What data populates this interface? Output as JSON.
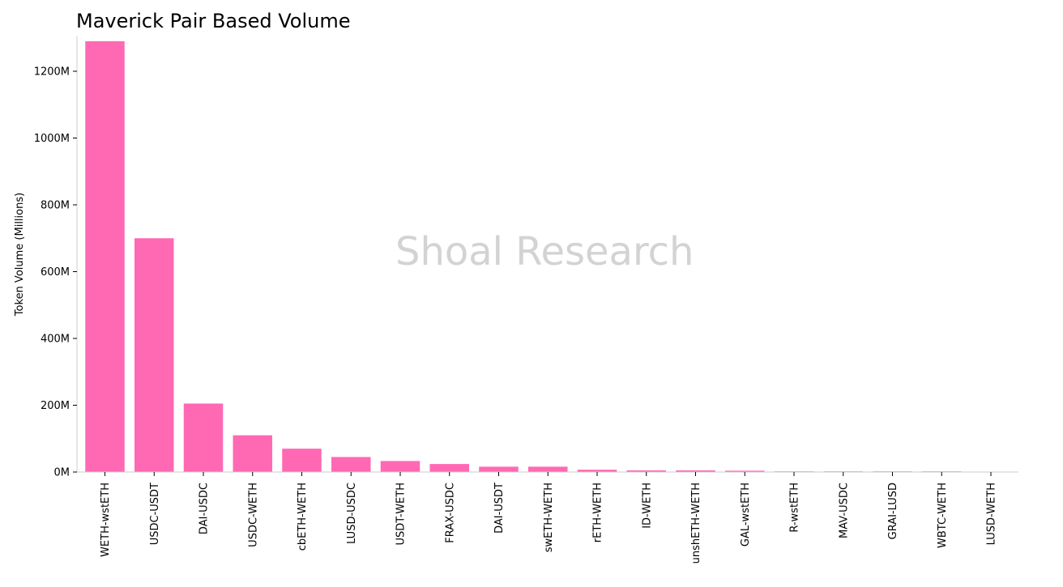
{
  "colors": {
    "bar": "#ff69b4",
    "axis": "#cccccc",
    "watermark": "#d3d3d3",
    "text": "#000000"
  },
  "watermark": "Shoal Research",
  "chart_data": {
    "type": "bar",
    "title": "Maverick Pair Based Volume",
    "xlabel": "",
    "ylabel": "Token Volume (Millions)",
    "ylim": [
      0,
      1300
    ],
    "yticks": [
      0,
      200,
      400,
      600,
      800,
      1000,
      1200
    ],
    "ytick_labels": [
      "0M",
      "200M",
      "400M",
      "600M",
      "800M",
      "1000M",
      "1200M"
    ],
    "grid": false,
    "categories": [
      "WETH-wstETH",
      "USDC-USDT",
      "DAI-USDC",
      "USDC-WETH",
      "cbETH-WETH",
      "LUSD-USDC",
      "USDT-WETH",
      "FRAX-USDC",
      "DAI-USDT",
      "swETH-WETH",
      "rETH-WETH",
      "ID-WETH",
      "unshETH-WETH",
      "GAL-wstETH",
      "R-wstETH",
      "MAV-USDC",
      "GRAI-LUSD",
      "WBTC-WETH",
      "LUSD-WETH"
    ],
    "values": [
      1290,
      700,
      205,
      110,
      70,
      45,
      33,
      24,
      16,
      16,
      7,
      5,
      5,
      4,
      2,
      2,
      2,
      2,
      0.5
    ]
  }
}
